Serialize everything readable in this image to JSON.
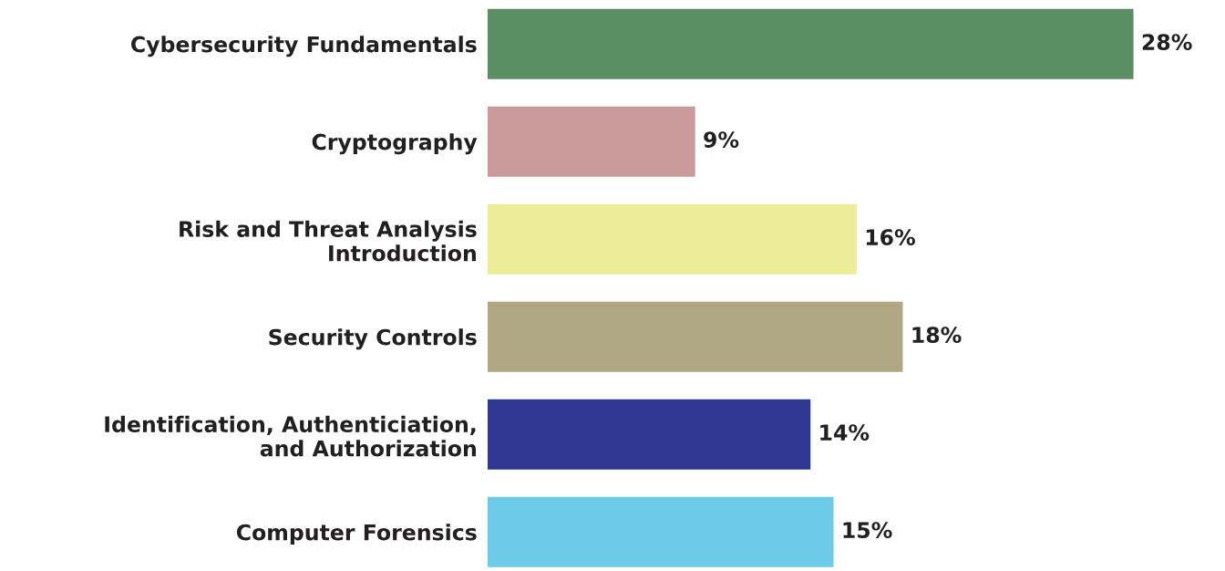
{
  "chart_data": {
    "type": "bar",
    "orientation": "horizontal",
    "categories": [
      "Cybersecurity Fundamentals",
      "Cryptography",
      "Risk and Threat Analysis\nIntroduction",
      "Security Controls",
      "Identification, Authenticiation,\nand Authorization",
      "Computer Forensics"
    ],
    "values": [
      28,
      9,
      16,
      18,
      14,
      15
    ],
    "colors": [
      "#5b8e63",
      "#c99a99",
      "#eced98",
      "#afa882",
      "#2e3791",
      "#6dcae8"
    ],
    "value_labels": [
      "28%",
      "9%",
      "16%",
      "18%",
      "14%",
      "15%"
    ]
  }
}
